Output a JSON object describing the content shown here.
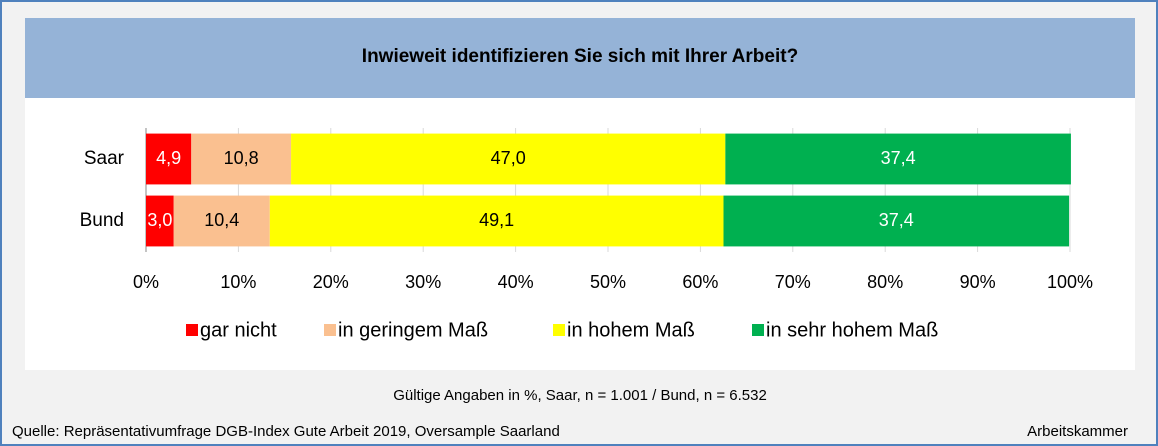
{
  "chart_data": {
    "type": "stacked_bar_horizontal",
    "title": "Inwieweit identifizieren Sie sich mit Ihrer Arbeit?",
    "categories": [
      "Saar",
      "Bund"
    ],
    "series": [
      {
        "name": "gar nicht",
        "color": "#ff0000",
        "values": [
          4.9,
          3.0
        ],
        "value_labels": [
          "4,9",
          "3,0"
        ]
      },
      {
        "name": "in geringem Maß",
        "color": "#fac090",
        "values": [
          10.8,
          10.4
        ],
        "value_labels": [
          "10,8",
          "10,4"
        ]
      },
      {
        "name": "in hohem Maß",
        "color": "#ffff00",
        "values": [
          47.0,
          49.1
        ],
        "value_labels": [
          "47,0",
          "49,1"
        ]
      },
      {
        "name": "in sehr hohem Maß",
        "color": "#00b050",
        "values": [
          37.4,
          37.4
        ],
        "value_labels": [
          "37,4",
          "37,4"
        ]
      }
    ],
    "xlim": [
      0,
      100
    ],
    "xticks": [
      {
        "value": 0,
        "label": "0%"
      },
      {
        "value": 10,
        "label": "10%"
      },
      {
        "value": 20,
        "label": "20%"
      },
      {
        "value": 30,
        "label": "30%"
      },
      {
        "value": 40,
        "label": "40%"
      },
      {
        "value": 50,
        "label": "50%"
      },
      {
        "value": 60,
        "label": "60%"
      },
      {
        "value": 70,
        "label": "70%"
      },
      {
        "value": 80,
        "label": "80%"
      },
      {
        "value": 90,
        "label": "90%"
      },
      {
        "value": 100,
        "label": "100%"
      }
    ],
    "grid": true,
    "legend": "bottom",
    "note": "Gültige Angaben in %, Saar, n = 1.001 / Bund, n = 6.532",
    "source": "Quelle: Repräsentativumfrage DGB-Index Gute Arbeit 2019, Oversample Saarland",
    "credit": "Arbeitskammer"
  }
}
